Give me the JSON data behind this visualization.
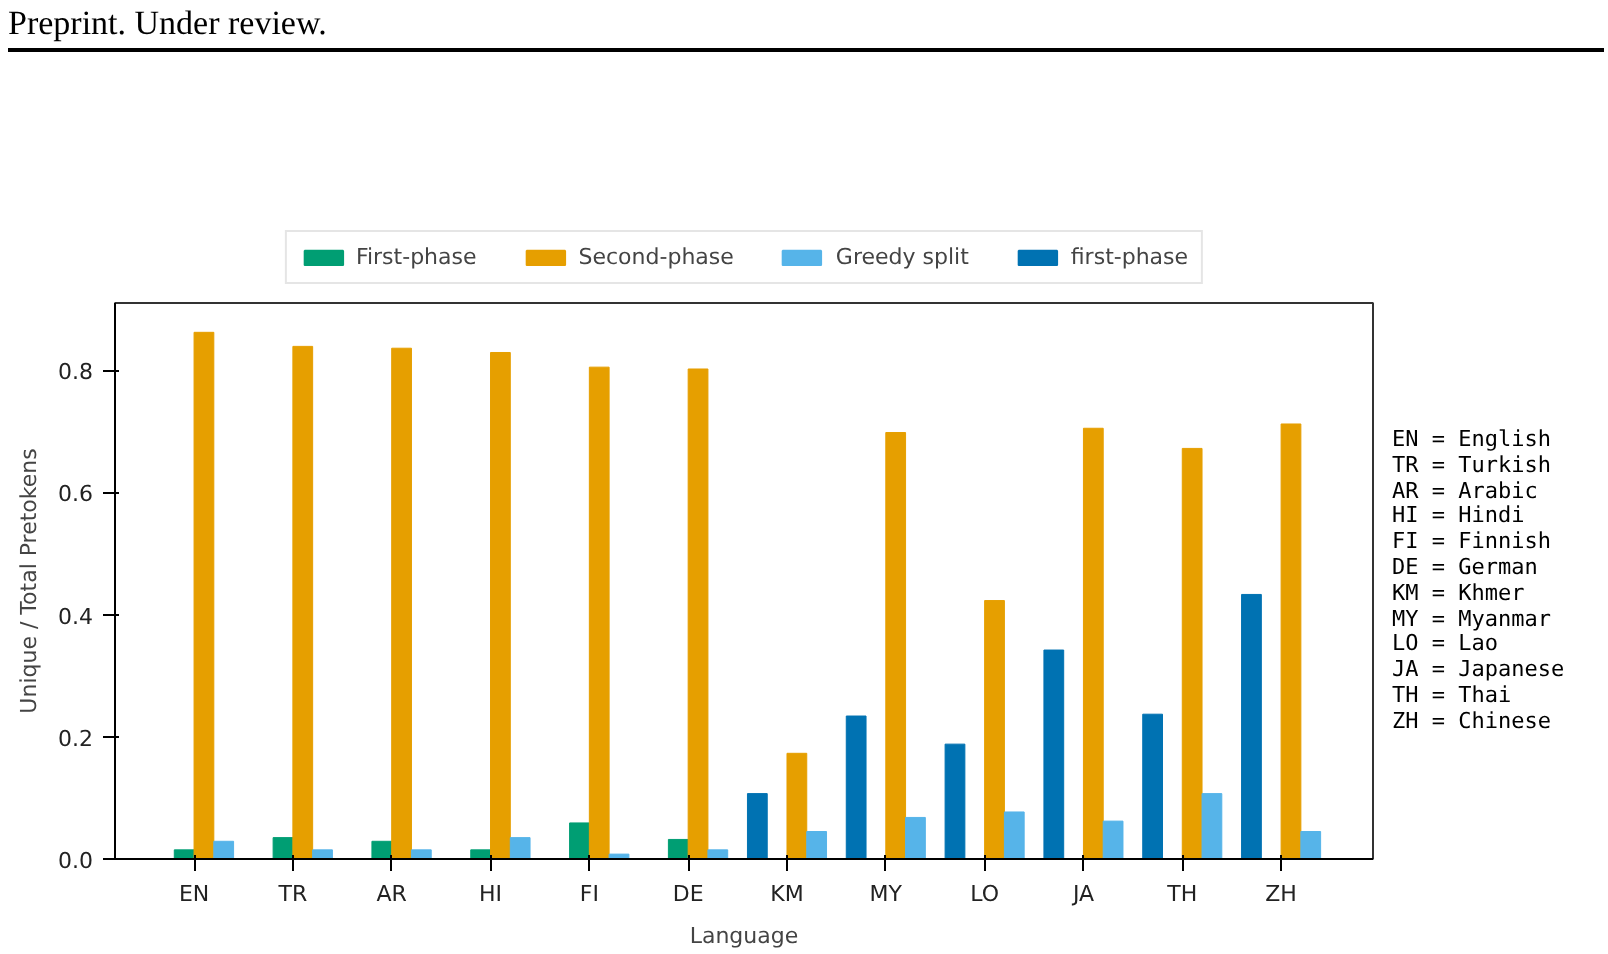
{
  "chart_data": {
    "type": "bar",
    "xlabel": "Language",
    "ylabel": "Unique / Total Pretokens",
    "categories": [
      "EN",
      "TR",
      "AR",
      "HI",
      "FI",
      "DE",
      "KM",
      "MY",
      "LO",
      "JA",
      "TH",
      "ZH"
    ],
    "series": [
      {
        "name": "First-phase",
        "color": "#009e73",
        "values": [
          0.015,
          0.035,
          0.029,
          0.015,
          0.059,
          0.032,
          0,
          0,
          0,
          0,
          0,
          0
        ]
      },
      {
        "name": "Second-phase",
        "color": "#e69f00",
        "values": [
          0.862,
          0.839,
          0.836,
          0.829,
          0.805,
          0.802,
          0.173,
          0.698,
          0.423,
          0.705,
          0.672,
          0.712
        ]
      },
      {
        "name": "Greedy split",
        "color": "#56b4e9",
        "values": [
          0.029,
          0.015,
          0.015,
          0.035,
          0.008,
          0.015,
          0.045,
          0.068,
          0.077,
          0.062,
          0.107,
          0.045
        ]
      },
      {
        "name": "first-phase",
        "color": "#0072b2",
        "values": [
          null,
          null,
          null,
          null,
          null,
          null,
          0.107,
          0.234,
          0.188,
          0.342,
          0.237,
          0.433
        ]
      }
    ],
    "ylim": [
      0,
      0.91
    ],
    "yticks": [
      {
        "value": 0,
        "label": "0.0"
      },
      0.2,
      0.4,
      0.6,
      0.8
    ],
    "grid": false,
    "legend": "top",
    "annotations": [
      "Preprint. Under review.",
      "EN = English",
      "TR = Turkish",
      "AR = Arabic",
      "HI = Hindi",
      "FI = Finnish",
      "DE = German",
      "KM = Khmer",
      "MY = Myanmar",
      "LO = Lao",
      "JA = Japanese",
      "TH = Thai",
      "ZH = Chinese"
    ]
  }
}
